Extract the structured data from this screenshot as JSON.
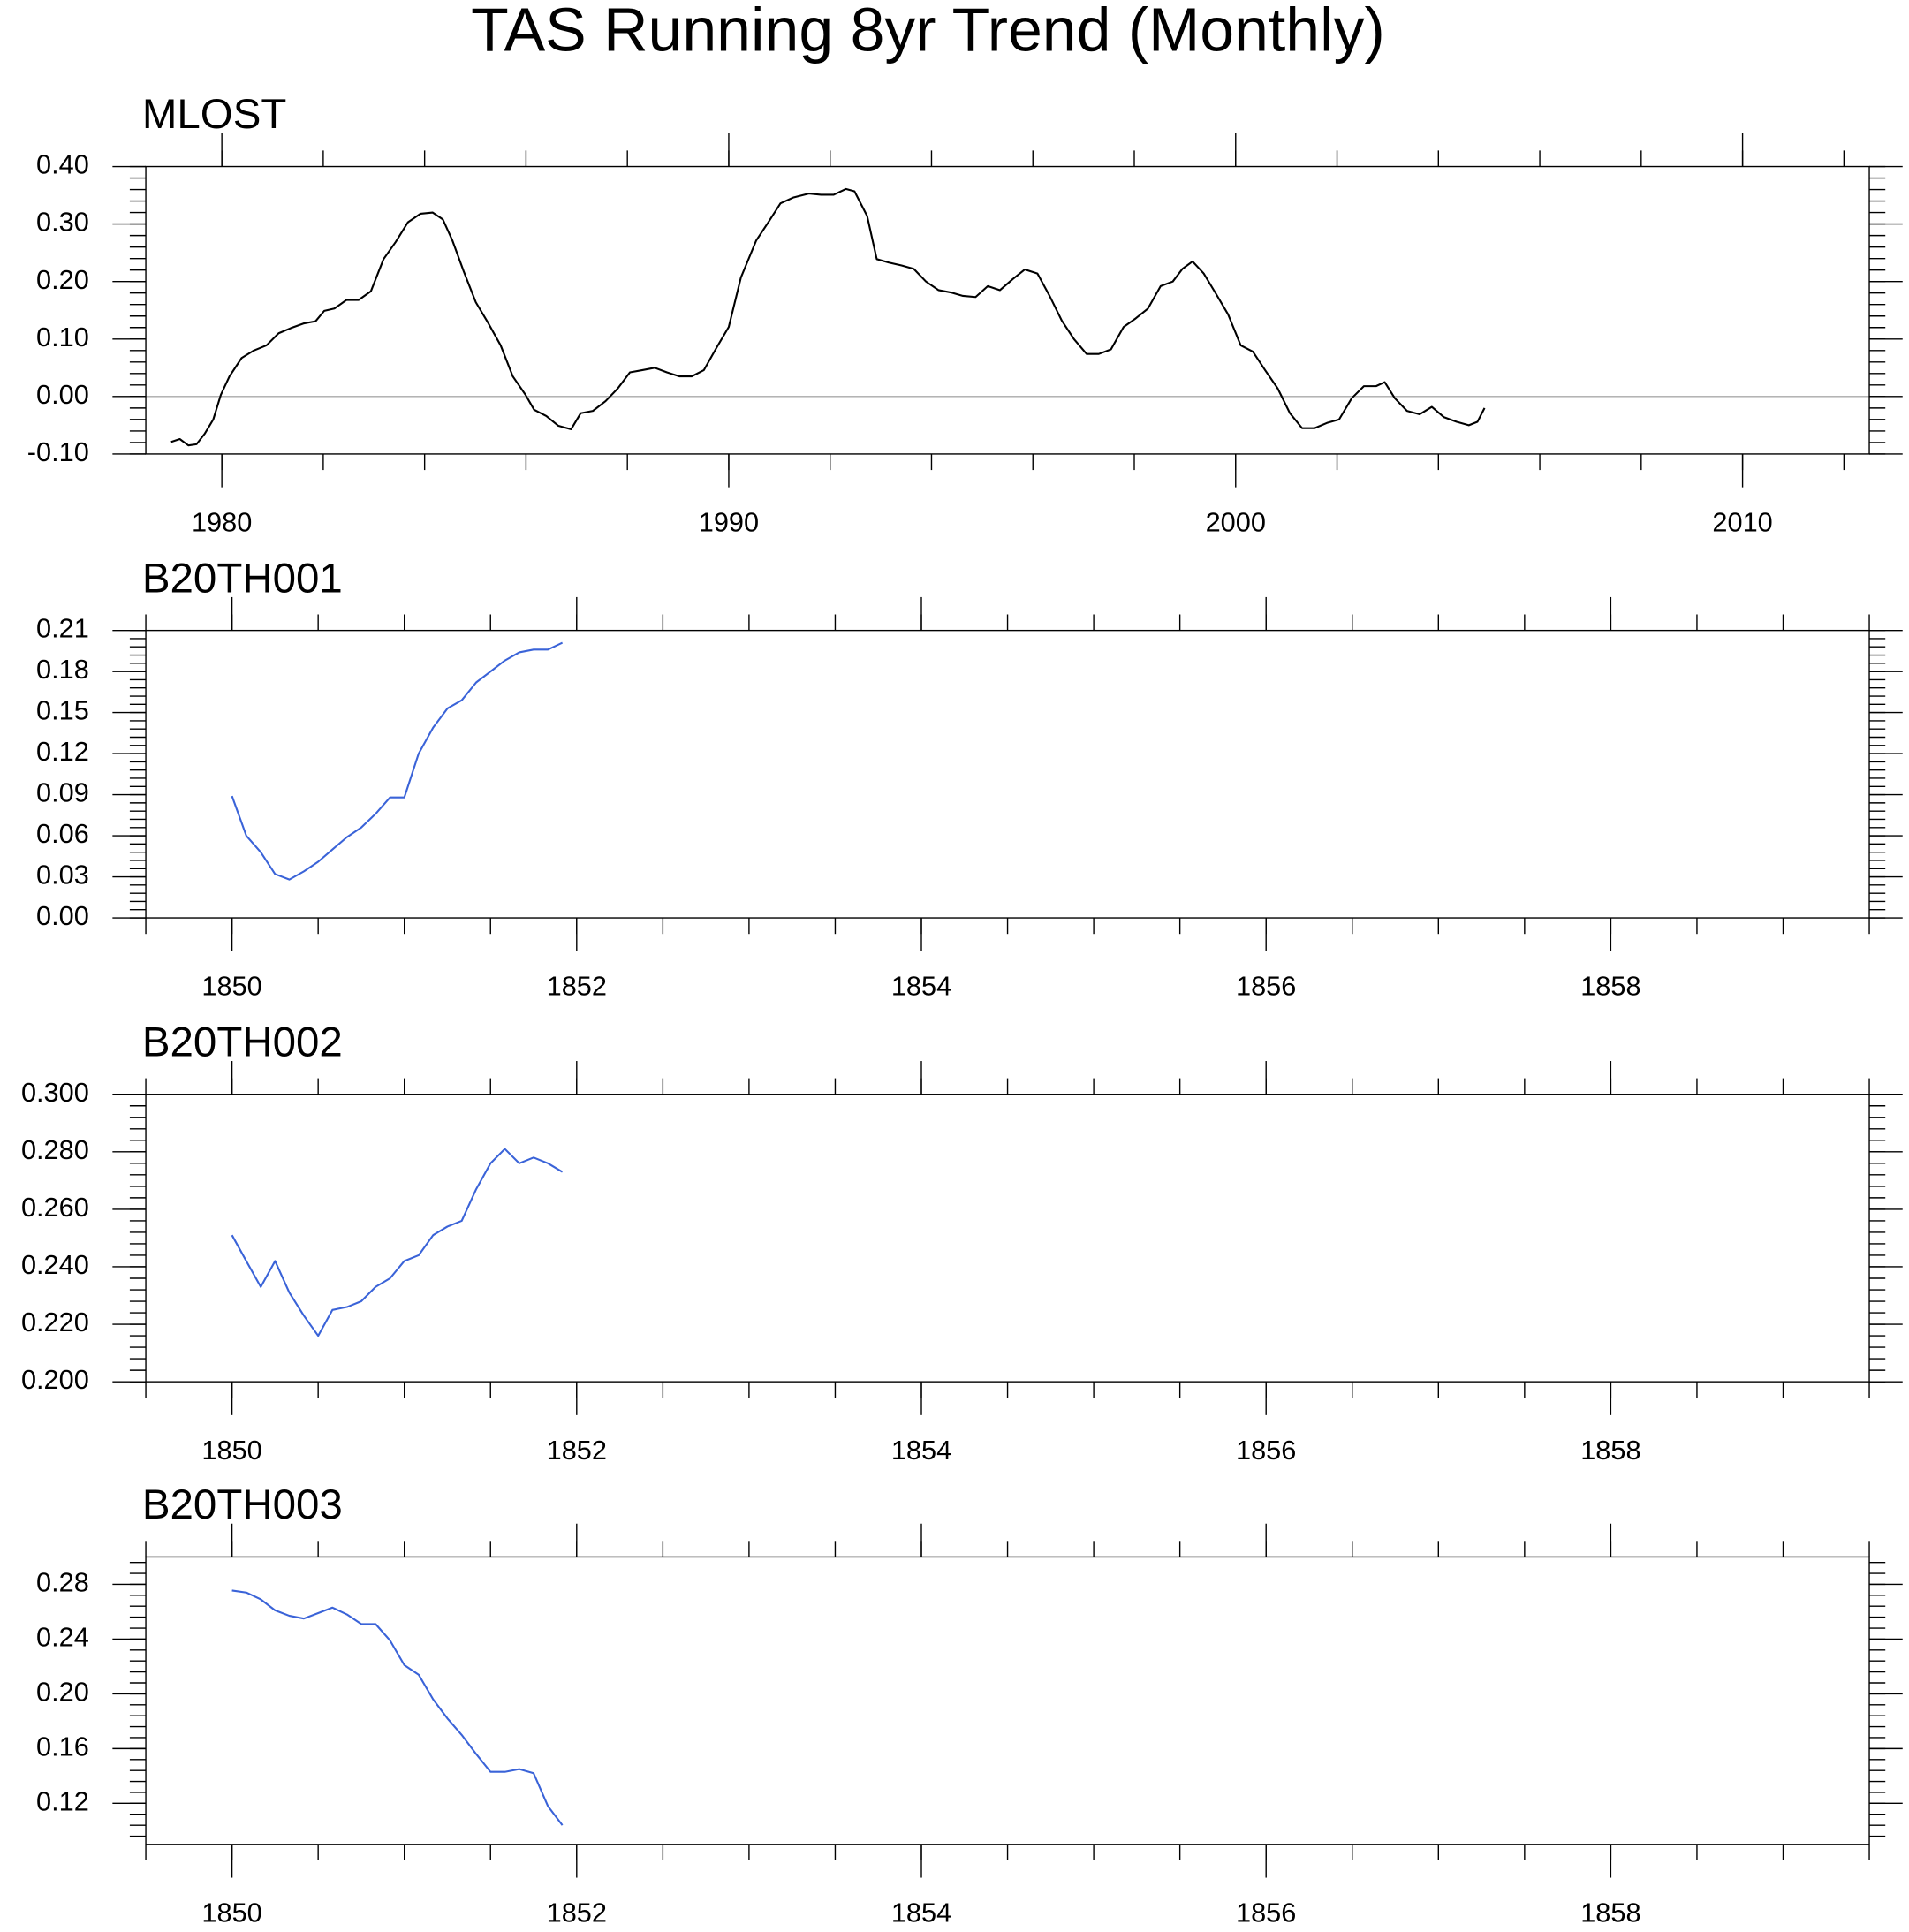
{
  "title": "TAS Running 8yr Trend (Monthly)",
  "chart_data": [
    {
      "type": "line",
      "title": "MLOST",
      "color": "#000000",
      "zero_line": true,
      "xlim": [
        1978.5,
        2012.5
      ],
      "xticks": [
        1980,
        1990,
        2000,
        2010
      ],
      "ylim": [
        -0.1,
        0.4
      ],
      "yticks": [
        {
          "value": -0.1,
          "label": "-0.10"
        },
        {
          "value": 0,
          "label": "0.00"
        },
        {
          "value": 0.1,
          "label": "0.10"
        },
        {
          "value": 0.2,
          "label": "0.20"
        },
        {
          "value": 0.3,
          "label": "0.30"
        },
        {
          "value": 0.4,
          "label": "0.40"
        }
      ],
      "x": [
        1979.0,
        1979.17,
        1979.34,
        1979.5,
        1979.66,
        1979.83,
        1979.98,
        1980.15,
        1980.39,
        1980.63,
        1980.88,
        1981.12,
        1981.36,
        1981.61,
        1981.85,
        1982.02,
        1982.22,
        1982.46,
        1982.7,
        1982.94,
        1983.19,
        1983.43,
        1983.67,
        1983.92,
        1984.16,
        1984.36,
        1984.55,
        1984.77,
        1985.01,
        1985.26,
        1985.5,
        1985.74,
        1985.99,
        1986.16,
        1986.4,
        1986.64,
        1986.89,
        1987.08,
        1987.32,
        1987.57,
        1987.81,
        1988.05,
        1988.3,
        1988.54,
        1988.78,
        1989.03,
        1989.27,
        1989.51,
        1989.76,
        1990.0,
        1990.24,
        1990.54,
        1990.78,
        1991.02,
        1991.27,
        1991.58,
        1991.82,
        1992.07,
        1992.31,
        1992.48,
        1992.73,
        1992.92,
        1993.16,
        1993.41,
        1993.65,
        1993.89,
        1994.14,
        1994.38,
        1994.62,
        1994.87,
        1995.11,
        1995.35,
        1995.6,
        1995.84,
        1996.09,
        1996.33,
        1996.57,
        1996.81,
        1997.06,
        1997.3,
        1997.54,
        1997.79,
        1998.03,
        1998.27,
        1998.52,
        1998.76,
        1998.95,
        1999.15,
        1999.37,
        1999.61,
        1999.85,
        2000.1,
        2000.34,
        2000.58,
        2000.83,
        2001.07,
        2001.31,
        2001.56,
        2001.8,
        2002.04,
        2002.29,
        2002.53,
        2002.77,
        2002.94,
        2003.14,
        2003.38,
        2003.63,
        2003.87,
        2004.11,
        2004.36,
        2004.6,
        2004.77,
        2004.91
      ],
      "values": [
        -0.079,
        -0.074,
        -0.085,
        -0.083,
        -0.065,
        -0.04,
        0.003,
        0.035,
        0.067,
        0.08,
        0.089,
        0.11,
        0.119,
        0.127,
        0.131,
        0.149,
        0.153,
        0.168,
        0.168,
        0.183,
        0.239,
        0.269,
        0.303,
        0.318,
        0.32,
        0.308,
        0.271,
        0.218,
        0.164,
        0.127,
        0.089,
        0.035,
        0.003,
        -0.023,
        -0.034,
        -0.051,
        -0.057,
        -0.029,
        -0.025,
        -0.008,
        0.014,
        0.042,
        0.046,
        0.05,
        0.042,
        0.035,
        0.035,
        0.046,
        0.085,
        0.121,
        0.207,
        0.271,
        0.303,
        0.336,
        0.346,
        0.353,
        0.351,
        0.351,
        0.361,
        0.357,
        0.314,
        0.239,
        0.233,
        0.228,
        0.222,
        0.2,
        0.185,
        0.181,
        0.175,
        0.173,
        0.192,
        0.185,
        0.204,
        0.221,
        0.214,
        0.175,
        0.132,
        0.1,
        0.074,
        0.074,
        0.082,
        0.121,
        0.136,
        0.153,
        0.192,
        0.2,
        0.222,
        0.235,
        0.214,
        0.179,
        0.143,
        0.089,
        0.078,
        0.046,
        0.014,
        -0.029,
        -0.055,
        -0.055,
        -0.046,
        -0.04,
        -0.003,
        0.018,
        0.018,
        0.025,
        -0.003,
        -0.025,
        -0.031,
        -0.018,
        -0.036,
        -0.044,
        -0.05,
        -0.044,
        -0.02
      ]
    },
    {
      "type": "line",
      "title": "B20TH001",
      "color": "#3a63d8",
      "xlim": [
        1849.5,
        1859.5
      ],
      "xticks": [
        1850,
        1852,
        1854,
        1856,
        1858
      ],
      "ylim": [
        0,
        0.21
      ],
      "yticks": [
        {
          "value": 0,
          "label": "0.00"
        },
        {
          "value": 0.03,
          "label": "0.03"
        },
        {
          "value": 0.06,
          "label": "0.06"
        },
        {
          "value": 0.09,
          "label": "0.09"
        },
        {
          "value": 0.12,
          "label": "0.12"
        },
        {
          "value": 0.15,
          "label": "0.15"
        },
        {
          "value": 0.18,
          "label": "0.18"
        },
        {
          "value": 0.21,
          "label": "0.21"
        }
      ],
      "x": [
        1850,
        1850.083,
        1850.167,
        1850.25,
        1850.333,
        1850.417,
        1850.5,
        1850.583,
        1850.667,
        1850.75,
        1850.833,
        1850.917,
        1851,
        1851.083,
        1851.167,
        1851.25,
        1851.333,
        1851.417,
        1851.5,
        1851.583,
        1851.667,
        1851.75,
        1851.833,
        1851.917
      ],
      "values": [
        0.089,
        0.06,
        0.048,
        0.032,
        0.028,
        0.034,
        0.041,
        0.05,
        0.059,
        0.066,
        0.076,
        0.088,
        0.088,
        0.12,
        0.139,
        0.153,
        0.159,
        0.172,
        0.18,
        0.188,
        0.194,
        0.196,
        0.196,
        0.201
      ]
    },
    {
      "type": "line",
      "title": "B20TH002",
      "color": "#3a63d8",
      "xlim": [
        1849.5,
        1859.5
      ],
      "xticks": [
        1850,
        1852,
        1854,
        1856,
        1858
      ],
      "ylim": [
        0.2,
        0.3
      ],
      "yticks": [
        {
          "value": 0.2,
          "label": "0.200"
        },
        {
          "value": 0.22,
          "label": "0.220"
        },
        {
          "value": 0.24,
          "label": "0.240"
        },
        {
          "value": 0.26,
          "label": "0.260"
        },
        {
          "value": 0.28,
          "label": "0.280"
        },
        {
          "value": 0.3,
          "label": "0.300"
        }
      ],
      "x": [
        1850,
        1850.083,
        1850.167,
        1850.25,
        1850.333,
        1850.417,
        1850.5,
        1850.583,
        1850.667,
        1850.75,
        1850.833,
        1850.917,
        1851,
        1851.083,
        1851.167,
        1851.25,
        1851.333,
        1851.417,
        1851.5,
        1851.583,
        1851.667,
        1851.75,
        1851.833,
        1851.917
      ],
      "values": [
        0.251,
        0.242,
        0.233,
        0.242,
        0.231,
        0.223,
        0.216,
        0.225,
        0.226,
        0.228,
        0.233,
        0.236,
        0.242,
        0.244,
        0.251,
        0.254,
        0.256,
        0.267,
        0.276,
        0.281,
        0.276,
        0.278,
        0.276,
        0.273
      ]
    },
    {
      "type": "line",
      "title": "B20TH003",
      "color": "#3a63d8",
      "xlim": [
        1849.5,
        1859.5
      ],
      "xticks": [
        1850,
        1852,
        1854,
        1856,
        1858
      ],
      "ylim": [
        0.09,
        0.3
      ],
      "yticks": [
        {
          "value": 0.12,
          "label": "0.12"
        },
        {
          "value": 0.16,
          "label": "0.16"
        },
        {
          "value": 0.2,
          "label": "0.20"
        },
        {
          "value": 0.24,
          "label": "0.24"
        },
        {
          "value": 0.28,
          "label": "0.28"
        }
      ],
      "x": [
        1850,
        1850.083,
        1850.167,
        1850.25,
        1850.333,
        1850.417,
        1850.5,
        1850.583,
        1850.667,
        1850.75,
        1850.833,
        1850.917,
        1851,
        1851.083,
        1851.167,
        1851.25,
        1851.333,
        1851.417,
        1851.5,
        1851.583,
        1851.667,
        1851.75,
        1851.833,
        1851.917
      ],
      "values": [
        0.2755,
        0.274,
        0.269,
        0.261,
        0.257,
        0.255,
        0.259,
        0.263,
        0.258,
        0.251,
        0.251,
        0.239,
        0.221,
        0.214,
        0.196,
        0.182,
        0.17,
        0.156,
        0.143,
        0.143,
        0.145,
        0.142,
        0.118,
        0.104
      ]
    }
  ]
}
